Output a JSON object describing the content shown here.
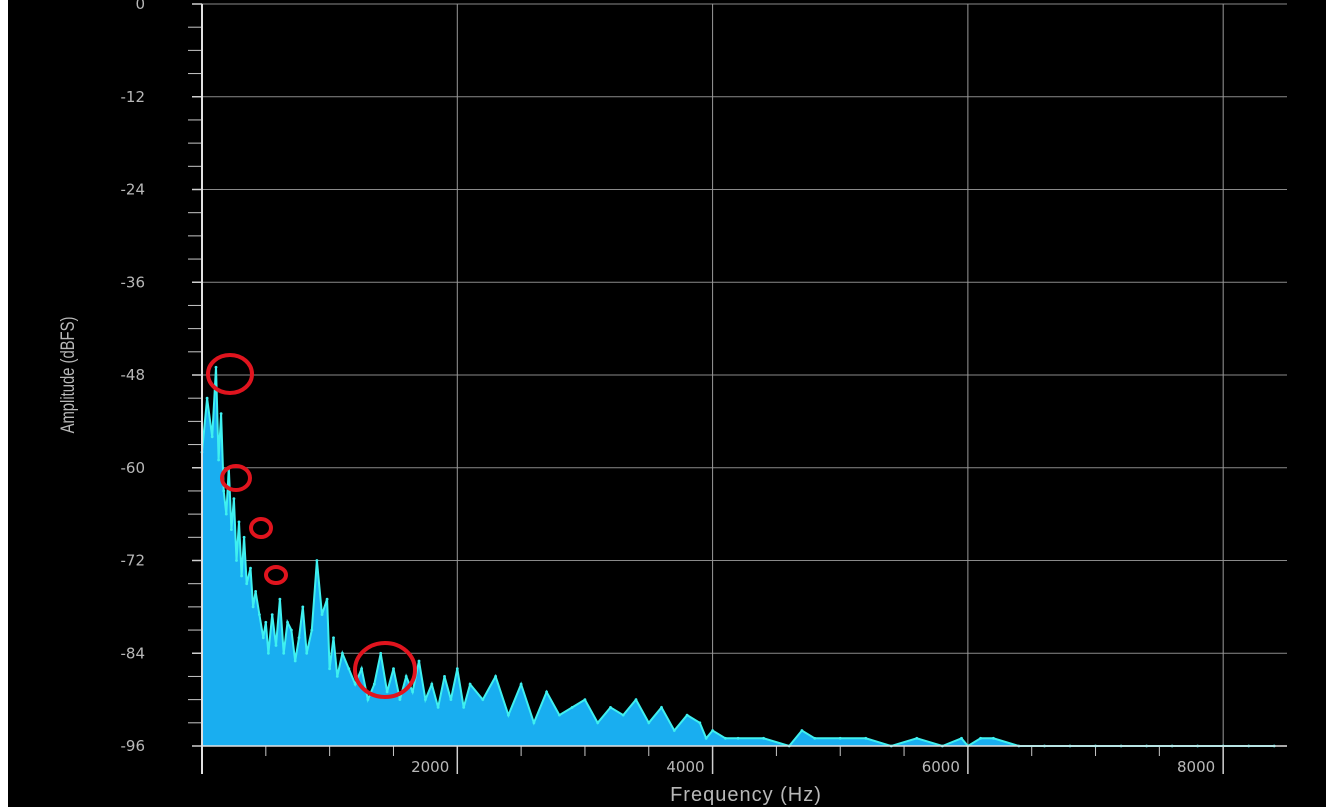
{
  "chart_data": {
    "type": "area",
    "title": "",
    "xlabel": "Frequency (Hz)",
    "ylabel": "Amplitude (dBFS)",
    "xlim": [
      0,
      8500
    ],
    "ylim": [
      -96,
      0
    ],
    "x_ticks": [
      2000,
      4000,
      6000,
      8000
    ],
    "x_tick_labels": [
      "2000",
      "4000",
      "6000",
      "8000"
    ],
    "y_ticks": [
      0,
      -12,
      -24,
      -36,
      -48,
      -60,
      -72,
      -84,
      -96
    ],
    "y_tick_labels": [
      "0",
      "-12",
      "-24",
      "-36",
      "-48",
      "-60",
      "-72",
      "-84",
      "-96"
    ],
    "grid": true,
    "fill_color": "#19aef0",
    "line_color": "#3ff0f0",
    "annotation_color": "#e0141e",
    "x": [
      0,
      40,
      80,
      110,
      130,
      150,
      170,
      190,
      210,
      230,
      250,
      270,
      290,
      310,
      330,
      350,
      380,
      400,
      420,
      450,
      480,
      500,
      520,
      550,
      580,
      610,
      640,
      670,
      700,
      730,
      760,
      790,
      820,
      860,
      900,
      940,
      980,
      1000,
      1030,
      1060,
      1100,
      1150,
      1200,
      1250,
      1300,
      1350,
      1400,
      1450,
      1500,
      1550,
      1600,
      1650,
      1700,
      1750,
      1800,
      1850,
      1900,
      1950,
      2000,
      2050,
      2100,
      2200,
      2300,
      2400,
      2500,
      2600,
      2700,
      2800,
      2900,
      3000,
      3100,
      3200,
      3300,
      3400,
      3500,
      3600,
      3700,
      3800,
      3900,
      3950,
      4000,
      4100,
      4200,
      4400,
      4600,
      4700,
      4800,
      5000,
      5200,
      5400,
      5600,
      5800,
      5950,
      6000,
      6100,
      6200,
      6400,
      6600,
      6800,
      7000,
      7200,
      7400,
      7600,
      7800,
      8000,
      8200,
      8400
    ],
    "y": [
      -58,
      -51,
      -56,
      -47,
      -59,
      -53,
      -63,
      -66,
      -60,
      -68,
      -64,
      -72,
      -67,
      -74,
      -69,
      -75,
      -73,
      -78,
      -76,
      -79,
      -82,
      -80,
      -84,
      -79,
      -83,
      -77,
      -84,
      -80,
      -81,
      -85,
      -82,
      -78,
      -84,
      -81,
      -72,
      -79,
      -77,
      -86,
      -82,
      -87,
      -84,
      -86,
      -88,
      -86,
      -90,
      -88,
      -84,
      -89,
      -86,
      -90,
      -87,
      -89,
      -85,
      -90,
      -88,
      -91,
      -87,
      -90,
      -86,
      -91,
      -88,
      -90,
      -87,
      -92,
      -88,
      -93,
      -89,
      -92,
      -91,
      -90,
      -93,
      -91,
      -92,
      -90,
      -93,
      -91,
      -94,
      -92,
      -93,
      -95,
      -94,
      -95,
      -95,
      -95,
      -96,
      -94,
      -95,
      -95,
      -95,
      -96,
      -95,
      -96,
      -95,
      -96,
      -95,
      -95,
      -96,
      -96,
      -96,
      -96,
      -96,
      -96,
      -96,
      -96,
      -96,
      -96,
      -96
    ]
  }
}
